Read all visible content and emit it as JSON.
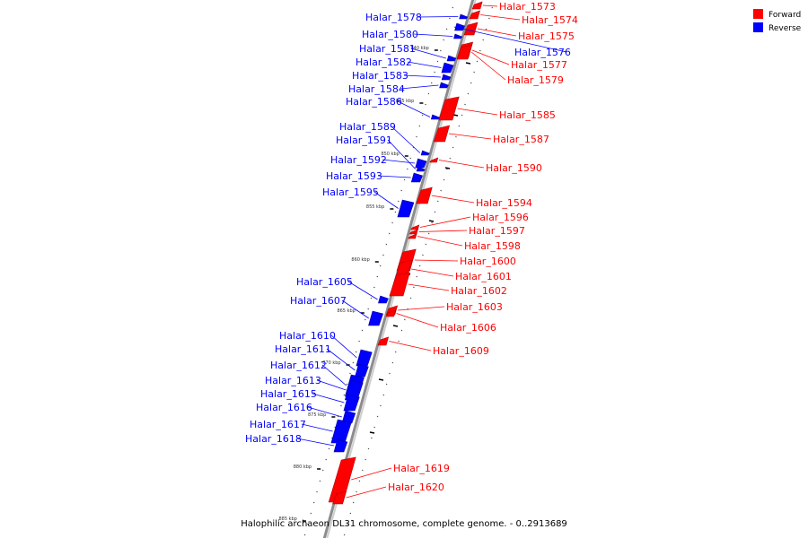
{
  "caption": "Halophilic archaeon DL31 chromosome, complete genome. - 0..2913689",
  "legend": [
    {
      "label": "Forward",
      "color": "#ff0000"
    },
    {
      "label": "Reverse",
      "color": "#0000ff"
    }
  ],
  "colors": {
    "forward": "#ff0000",
    "reverse": "#0000ff",
    "backbone": "#8c8c8c"
  },
  "ticks": [
    "840 kbp",
    "845 kbp",
    "850 kbp",
    "855 kbp",
    "860 kbp",
    "865 kbp",
    "870 kbp",
    "875 kbp",
    "880 kbp",
    "885 kbp"
  ],
  "genes": [
    {
      "name": "Halar_1573",
      "strand": "forward"
    },
    {
      "name": "Halar_1574",
      "strand": "forward"
    },
    {
      "name": "Halar_1575",
      "strand": "forward"
    },
    {
      "name": "Halar_1576",
      "strand": "reverse"
    },
    {
      "name": "Halar_1577",
      "strand": "forward"
    },
    {
      "name": "Halar_1578",
      "strand": "reverse"
    },
    {
      "name": "Halar_1579",
      "strand": "forward"
    },
    {
      "name": "Halar_1580",
      "strand": "reverse"
    },
    {
      "name": "Halar_1581",
      "strand": "reverse"
    },
    {
      "name": "Halar_1582",
      "strand": "reverse"
    },
    {
      "name": "Halar_1583",
      "strand": "reverse"
    },
    {
      "name": "Halar_1584",
      "strand": "reverse"
    },
    {
      "name": "Halar_1585",
      "strand": "forward"
    },
    {
      "name": "Halar_1586",
      "strand": "reverse"
    },
    {
      "name": "Halar_1587",
      "strand": "forward"
    },
    {
      "name": "Halar_1589",
      "strand": "reverse"
    },
    {
      "name": "Halar_1590",
      "strand": "forward"
    },
    {
      "name": "Halar_1591",
      "strand": "reverse"
    },
    {
      "name": "Halar_1592",
      "strand": "reverse"
    },
    {
      "name": "Halar_1593",
      "strand": "reverse"
    },
    {
      "name": "Halar_1594",
      "strand": "forward"
    },
    {
      "name": "Halar_1595",
      "strand": "reverse"
    },
    {
      "name": "Halar_1596",
      "strand": "forward"
    },
    {
      "name": "Halar_1597",
      "strand": "forward"
    },
    {
      "name": "Halar_1598",
      "strand": "forward"
    },
    {
      "name": "Halar_1600",
      "strand": "forward"
    },
    {
      "name": "Halar_1601",
      "strand": "forward"
    },
    {
      "name": "Halar_1602",
      "strand": "forward"
    },
    {
      "name": "Halar_1603",
      "strand": "forward"
    },
    {
      "name": "Halar_1605",
      "strand": "reverse"
    },
    {
      "name": "Halar_1606",
      "strand": "forward"
    },
    {
      "name": "Halar_1607",
      "strand": "reverse"
    },
    {
      "name": "Halar_1609",
      "strand": "forward"
    },
    {
      "name": "Halar_1610",
      "strand": "reverse"
    },
    {
      "name": "Halar_1611",
      "strand": "reverse"
    },
    {
      "name": "Halar_1612",
      "strand": "reverse"
    },
    {
      "name": "Halar_1613",
      "strand": "reverse"
    },
    {
      "name": "Halar_1615",
      "strand": "reverse"
    },
    {
      "name": "Halar_1616",
      "strand": "reverse"
    },
    {
      "name": "Halar_1617",
      "strand": "reverse"
    },
    {
      "name": "Halar_1618",
      "strand": "reverse"
    },
    {
      "name": "Halar_1619",
      "strand": "forward"
    },
    {
      "name": "Halar_1620",
      "strand": "forward"
    }
  ]
}
